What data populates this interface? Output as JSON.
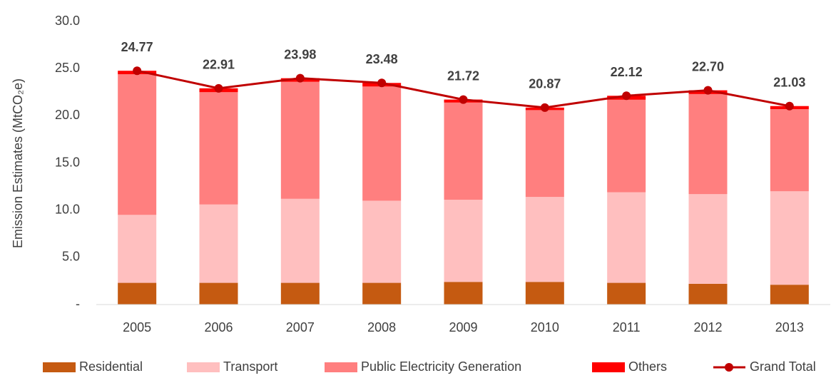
{
  "chart_data": {
    "type": "stacked-bar-line",
    "y_axis_label": "Emission Estimates (MtCO₂e)",
    "categories": [
      "2005",
      "2006",
      "2007",
      "2008",
      "2009",
      "2010",
      "2011",
      "2012",
      "2013"
    ],
    "series": [
      {
        "name": "Residential",
        "color": "#c55a11",
        "kind": "bar",
        "values": [
          2.3,
          2.3,
          2.3,
          2.3,
          2.4,
          2.4,
          2.3,
          2.2,
          2.1
        ]
      },
      {
        "name": "Transport",
        "color": "#ffbfbf",
        "kind": "bar",
        "values": [
          7.2,
          8.3,
          8.9,
          8.7,
          8.7,
          9.0,
          9.6,
          9.5,
          9.9
        ]
      },
      {
        "name": "Public Electricity Generation",
        "color": "#ff7f7f",
        "kind": "bar",
        "values": [
          14.9,
          11.9,
          12.4,
          12.1,
          10.3,
          9.2,
          9.8,
          10.6,
          8.7
        ]
      },
      {
        "name": "Others",
        "color": "#ff0000",
        "kind": "bar",
        "values": [
          0.37,
          0.41,
          0.38,
          0.38,
          0.32,
          0.27,
          0.42,
          0.4,
          0.33
        ]
      },
      {
        "name": "Grand Total",
        "color": "#c00000",
        "kind": "line",
        "values": [
          24.77,
          22.91,
          23.98,
          23.48,
          21.72,
          20.87,
          22.12,
          22.7,
          21.03
        ],
        "value_labels": [
          "24.77",
          "22.91",
          "23.98",
          "23.48",
          "21.72",
          "20.87",
          "22.12",
          "22.70",
          "21.03"
        ]
      }
    ],
    "ylim": [
      0,
      30
    ],
    "yticks": [
      {
        "value": 0,
        "label": "-"
      },
      {
        "value": 5,
        "label": "5.0"
      },
      {
        "value": 10,
        "label": "10.0"
      },
      {
        "value": 15,
        "label": "15.0"
      },
      {
        "value": 20,
        "label": "20.0"
      },
      {
        "value": 25,
        "label": "25.0"
      },
      {
        "value": 30,
        "label": "30.0"
      }
    ],
    "grid": false,
    "legend": "bottom"
  }
}
